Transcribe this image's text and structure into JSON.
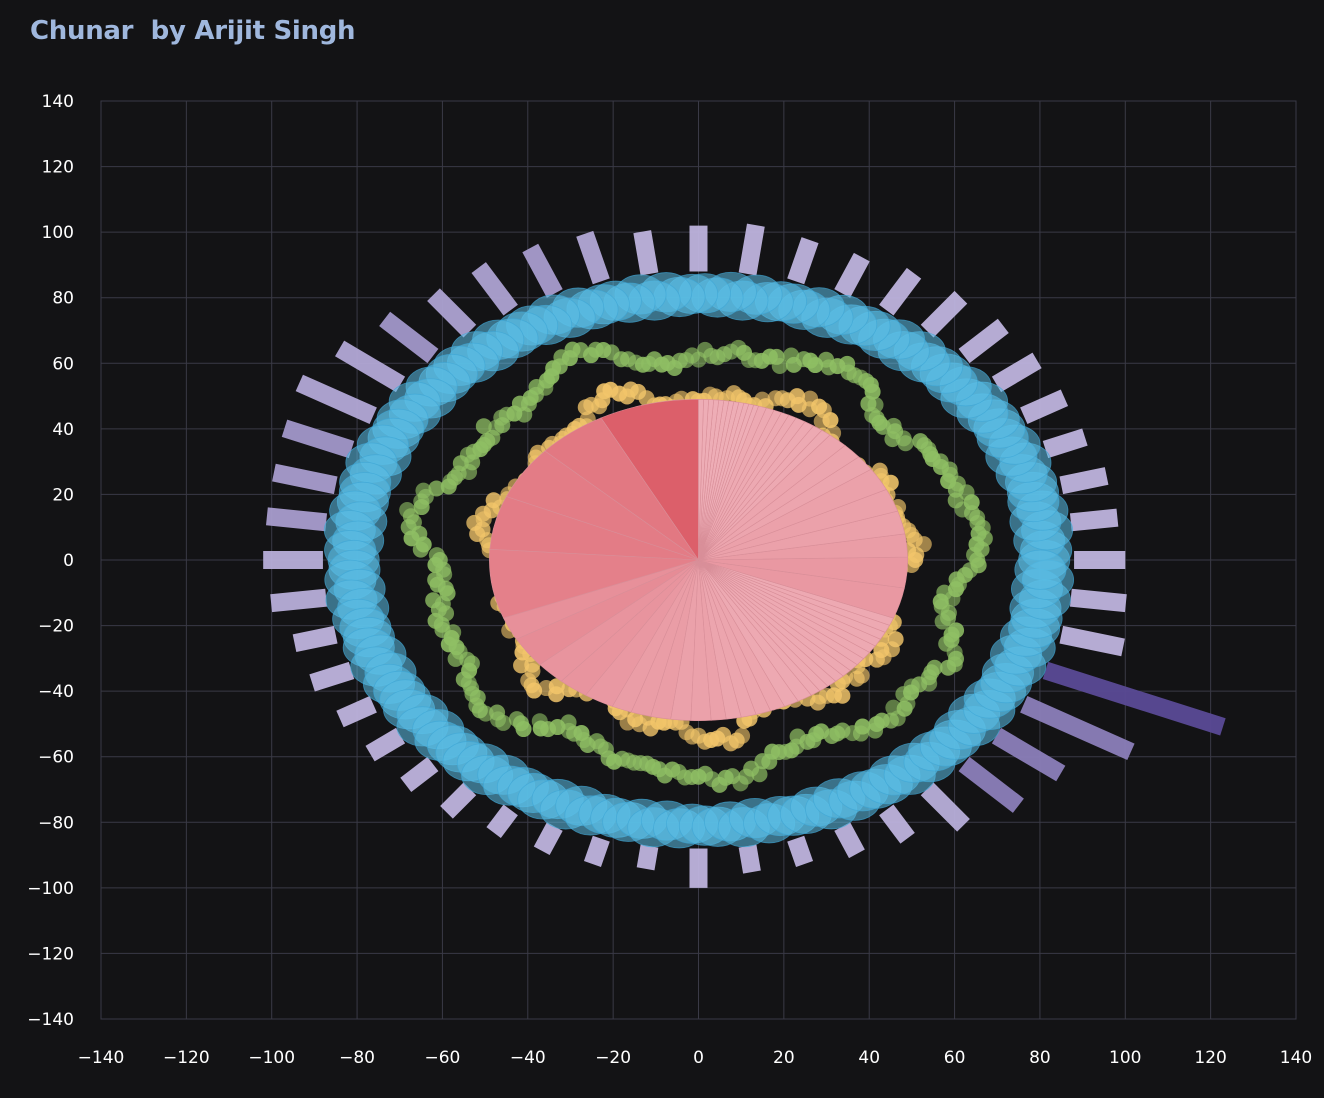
{
  "title": "Chunar  by Arijit Singh",
  "chart_data": {
    "type": "radial-composite",
    "title": "Chunar  by Arijit Singh",
    "xlim": [
      -140,
      140
    ],
    "ylim": [
      -140,
      140
    ],
    "x_ticks": [
      -140,
      -120,
      -100,
      -80,
      -60,
      -40,
      -20,
      0,
      20,
      40,
      60,
      80,
      100,
      120,
      140
    ],
    "y_ticks": [
      140,
      120,
      100,
      80,
      60,
      40,
      20,
      0,
      -20,
      -40,
      -60,
      -80,
      -100,
      -120,
      -140
    ],
    "grid": true,
    "colors": {
      "background": "#131315",
      "grid": "#3a3a46",
      "bars": "#c9c0e6",
      "bars_highlight": "#5a4a96",
      "ring": "#5bbfe8",
      "green": "#8fbf64",
      "yellow": "#f2c56a",
      "pie_dark": "#dc5f6a",
      "pie_light": "#efb1ba"
    },
    "radial_bars": {
      "count": 48,
      "inner_radius": 88,
      "start_angle_deg": 90,
      "direction": "clockwise",
      "outer_radius": [
        102,
        103,
        101,
        100,
        101,
        101,
        101,
        100,
        99,
        98,
        99,
        99,
        100,
        101,
        103,
        133,
        117,
        107,
        106,
        102,
        98,
        97,
        96,
        96,
        100,
        95,
        96,
        96,
        96,
        97,
        97,
        97,
        97,
        98,
        98,
        101,
        102,
        102,
        103,
        105,
        108,
        106,
        104,
        102,
        103,
        103,
        103,
        101
      ],
      "shade": [
        0.1,
        0.1,
        0.1,
        0.1,
        0.1,
        0.1,
        0.1,
        0.1,
        0.1,
        0.1,
        0.1,
        0.1,
        0.1,
        0.1,
        0.1,
        1.0,
        0.55,
        0.55,
        0.55,
        0.15,
        0.1,
        0.1,
        0.1,
        0.1,
        0.1,
        0.1,
        0.1,
        0.1,
        0.1,
        0.1,
        0.1,
        0.1,
        0.1,
        0.1,
        0.1,
        0.15,
        0.15,
        0.3,
        0.3,
        0.35,
        0.2,
        0.2,
        0.35,
        0.25,
        0.25,
        0.3,
        0.2,
        0.1
      ]
    },
    "ring": {
      "center_radius": 81,
      "count": 170,
      "marker_radius": 6
    },
    "green_series": {
      "count": 260,
      "base_radius": 65,
      "x_stretch": 0.98,
      "y_stretch": 0.99
    },
    "yellow_series": {
      "count": 220,
      "base_radius": 51,
      "x_stretch": 0.94,
      "y_stretch": 1.0
    },
    "pie": {
      "radius": 49,
      "start_angle_deg": 90,
      "direction": "counterclockwise",
      "values": [
        10,
        7,
        7,
        7,
        9,
        3,
        4,
        3,
        3,
        3,
        2,
        2,
        2,
        2,
        2,
        1.5,
        1.5,
        1.5,
        1.5,
        1.5,
        1.5,
        1.5,
        1,
        1,
        1,
        1,
        1,
        1,
        1,
        1,
        1,
        1,
        1,
        1,
        1,
        4,
        4,
        3,
        3,
        3,
        3,
        2,
        2,
        2,
        1,
        1,
        1,
        1,
        0.8,
        0.8,
        0.8,
        0.8,
        0.8,
        0.5,
        0.5,
        0.5,
        0.5,
        0.5,
        0.5,
        0.5,
        0.5,
        0.5,
        0.5,
        0.5,
        0.5
      ],
      "intensity": [
        1.0,
        0.7,
        0.65,
        0.65,
        0.6,
        0.4,
        0.45,
        0.35,
        0.35,
        0.3,
        0.25,
        0.25,
        0.25,
        0.2,
        0.2,
        0.2,
        0.15,
        0.15,
        0.15,
        0.15,
        0.1,
        0.1,
        0.1,
        0.1,
        0.1,
        0.1,
        0.1,
        0.1,
        0.1,
        0.1,
        0.1,
        0.1,
        0.1,
        0.1,
        0.1,
        0.3,
        0.3,
        0.25,
        0.2,
        0.2,
        0.2,
        0.15,
        0.15,
        0.15,
        0.1,
        0.1,
        0.1,
        0.1,
        0.1,
        0.1,
        0.1,
        0.1,
        0.1,
        0.05,
        0.05,
        0.05,
        0.05,
        0.05,
        0.05,
        0.05,
        0.05,
        0.05,
        0.05,
        0.05,
        0.05
      ]
    }
  }
}
